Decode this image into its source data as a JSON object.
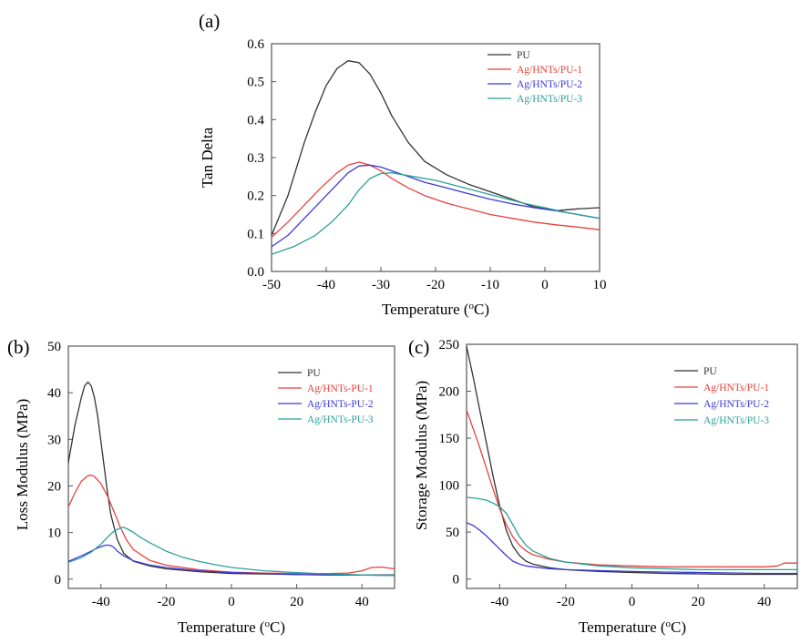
{
  "chart_data": [
    {
      "type": "line",
      "panel_label": "(a)",
      "xlabel": "Temperature (",
      "xlabel_unit": "C)",
      "xlabel_sup": "o",
      "ylabel": "Tan Delta",
      "xlim": [
        -50,
        10
      ],
      "ylim": [
        0,
        0.6
      ],
      "xticks": [
        "-50",
        "-40",
        "-30",
        "-20",
        "-10",
        "0",
        "10"
      ],
      "yticks": [
        "0.0",
        "0.1",
        "0.2",
        "0.3",
        "0.4",
        "0.5",
        "0.6"
      ],
      "legend_position": "top-right",
      "series": [
        {
          "name": "PU",
          "color": "#333333",
          "x": [
            -50,
            -47,
            -44,
            -42,
            -40,
            -38,
            -36,
            -34,
            -32,
            -30,
            -28,
            -25,
            -22,
            -18,
            -14,
            -10,
            -6,
            -2,
            2,
            6,
            10
          ],
          "y": [
            0.095,
            0.2,
            0.34,
            0.42,
            0.49,
            0.535,
            0.555,
            0.55,
            0.52,
            0.47,
            0.41,
            0.34,
            0.29,
            0.255,
            0.23,
            0.21,
            0.19,
            0.17,
            0.16,
            0.165,
            0.168
          ]
        },
        {
          "name": "Ag/HNTs/PU-1",
          "color": "#e8413c",
          "x": [
            -50,
            -47,
            -44,
            -41,
            -38,
            -36,
            -34,
            -32,
            -30,
            -28,
            -25,
            -22,
            -18,
            -14,
            -10,
            -6,
            -2,
            2,
            6,
            10
          ],
          "y": [
            0.09,
            0.13,
            0.175,
            0.22,
            0.26,
            0.28,
            0.288,
            0.28,
            0.265,
            0.245,
            0.22,
            0.2,
            0.18,
            0.165,
            0.15,
            0.14,
            0.13,
            0.123,
            0.117,
            0.11
          ]
        },
        {
          "name": "Ag/HNTs/PU-2",
          "color": "#3b3bd6",
          "x": [
            -50,
            -47,
            -44,
            -41,
            -38,
            -36,
            -34,
            -32,
            -30,
            -28,
            -25,
            -22,
            -18,
            -14,
            -10,
            -6,
            -2,
            2,
            6,
            10
          ],
          "y": [
            0.065,
            0.095,
            0.14,
            0.185,
            0.23,
            0.26,
            0.278,
            0.28,
            0.275,
            0.265,
            0.25,
            0.235,
            0.22,
            0.205,
            0.19,
            0.178,
            0.168,
            0.16,
            0.15,
            0.14
          ]
        },
        {
          "name": "Ag/HNTs/PU-3",
          "color": "#2aa198",
          "x": [
            -50,
            -46,
            -42,
            -39,
            -36,
            -34,
            -32,
            -30,
            -28,
            -26,
            -24,
            -20,
            -16,
            -12,
            -8,
            -4,
            0,
            4,
            8,
            10
          ],
          "y": [
            0.045,
            0.065,
            0.095,
            0.13,
            0.175,
            0.215,
            0.245,
            0.258,
            0.26,
            0.255,
            0.25,
            0.24,
            0.225,
            0.21,
            0.195,
            0.18,
            0.168,
            0.155,
            0.145,
            0.14
          ]
        }
      ]
    },
    {
      "type": "line",
      "panel_label": "(b)",
      "xlabel": "Temperature (",
      "xlabel_unit": "C)",
      "xlabel_sup": "o",
      "ylabel": "Loss Modulus (MPa)",
      "xlim": [
        -50,
        50
      ],
      "ylim": [
        -2,
        50
      ],
      "xticks": [
        "-40",
        "-20",
        "0",
        "20",
        "40"
      ],
      "yticks": [
        "0",
        "10",
        "20",
        "30",
        "40",
        "50"
      ],
      "legend_position": "top-right",
      "series": [
        {
          "name": "PU",
          "color": "#333333",
          "x": [
            -50,
            -48,
            -46,
            -45,
            -44,
            -43,
            -42,
            -41,
            -40,
            -39,
            -38,
            -37,
            -35,
            -33,
            -30,
            -25,
            -20,
            -10,
            0,
            10,
            20,
            30,
            40,
            50
          ],
          "y": [
            25,
            33,
            39,
            41.5,
            42.3,
            41.5,
            39,
            35,
            29.5,
            24,
            18.5,
            14,
            8.5,
            5.5,
            3.8,
            2.8,
            2.2,
            1.6,
            1.2,
            1.1,
            1.0,
            0.9,
            0.9,
            0.9
          ]
        },
        {
          "name": "Ag/HNTs-PU-1",
          "color": "#e8413c",
          "x": [
            -50,
            -48,
            -46,
            -44,
            -43,
            -42,
            -40,
            -38,
            -36,
            -34,
            -32,
            -30,
            -25,
            -20,
            -10,
            0,
            10,
            20,
            30,
            36,
            40,
            43,
            46,
            50
          ],
          "y": [
            15.5,
            18.5,
            21,
            22.2,
            22.3,
            22,
            20.5,
            17.8,
            14.5,
            11,
            8.2,
            6.3,
            4,
            3,
            2,
            1.5,
            1.3,
            1.2,
            1.2,
            1.3,
            1.8,
            2.5,
            2.6,
            2.2
          ]
        },
        {
          "name": "Ag/HNTs-PU-2",
          "color": "#3b3bd6",
          "x": [
            -50,
            -46,
            -43,
            -41,
            -39,
            -38,
            -37,
            -36,
            -35,
            -33,
            -30,
            -25,
            -20,
            -10,
            0,
            10,
            20,
            30,
            40,
            50
          ],
          "y": [
            3.8,
            5,
            6,
            6.7,
            7.2,
            7.3,
            7.2,
            6.8,
            6,
            5,
            3.9,
            3,
            2.5,
            1.8,
            1.4,
            1.2,
            1.0,
            0.9,
            0.85,
            0.8
          ]
        },
        {
          "name": "Ag/HNTs-PU-3",
          "color": "#2aa198",
          "x": [
            -50,
            -46,
            -43,
            -40,
            -38,
            -36,
            -34,
            -33,
            -32,
            -30,
            -28,
            -25,
            -20,
            -15,
            -10,
            -5,
            0,
            10,
            20,
            30,
            40,
            50
          ],
          "y": [
            3.6,
            4.6,
            5.8,
            7.5,
            9,
            10.3,
            11,
            11.1,
            10.8,
            10,
            9,
            7.8,
            6,
            4.7,
            3.8,
            3.1,
            2.5,
            1.8,
            1.4,
            1.1,
            0.9,
            0.8
          ]
        }
      ]
    },
    {
      "type": "line",
      "panel_label": "(c)",
      "xlabel": "Temperature (",
      "xlabel_unit": "C)",
      "xlabel_sup": "o",
      "ylabel": "Storage Modulus (MPa)",
      "xlim": [
        -50,
        50
      ],
      "ylim": [
        -10,
        250
      ],
      "xticks": [
        "-40",
        "-20",
        "0",
        "20",
        "40"
      ],
      "yticks": [
        "0",
        "50",
        "100",
        "150",
        "200",
        "250"
      ],
      "legend_position": "top-right",
      "series": [
        {
          "name": "PU",
          "color": "#333333",
          "x": [
            -50,
            -48,
            -46,
            -44,
            -42,
            -40,
            -38,
            -36,
            -34,
            -32,
            -30,
            -25,
            -20,
            -10,
            0,
            10,
            20,
            30,
            40,
            50
          ],
          "y": [
            248,
            215,
            180,
            145,
            110,
            78,
            52,
            35,
            25,
            19,
            16,
            12,
            10,
            8,
            7,
            6,
            5.5,
            5,
            5,
            5
          ]
        },
        {
          "name": "Ag/HNTs/PU-1",
          "color": "#e8413c",
          "x": [
            -50,
            -48,
            -46,
            -44,
            -42,
            -40,
            -38,
            -36,
            -34,
            -32,
            -30,
            -25,
            -20,
            -10,
            0,
            10,
            20,
            30,
            40,
            44,
            46,
            50
          ],
          "y": [
            180,
            160,
            140,
            118,
            96,
            75,
            58,
            45,
            36,
            30,
            26,
            21,
            18,
            15,
            14,
            13,
            13,
            13,
            13,
            14,
            17,
            17
          ]
        },
        {
          "name": "Ag/HNTs/PU-2",
          "color": "#3b3bd6",
          "x": [
            -50,
            -48,
            -46,
            -44,
            -42,
            -40,
            -38,
            -36,
            -34,
            -32,
            -30,
            -25,
            -20,
            -10,
            0,
            10,
            20,
            30,
            40,
            50
          ],
          "y": [
            60,
            57,
            52,
            46,
            39,
            32,
            25,
            19,
            16,
            14,
            13,
            11,
            10,
            9,
            8,
            7.5,
            7,
            6.5,
            6,
            6
          ]
        },
        {
          "name": "Ag/HNTs/PU-3",
          "color": "#2aa198",
          "x": [
            -50,
            -47,
            -44,
            -42,
            -40,
            -38,
            -36,
            -34,
            -32,
            -30,
            -25,
            -20,
            -15,
            -10,
            0,
            10,
            20,
            30,
            40,
            50
          ],
          "y": [
            87,
            86,
            84,
            81,
            77,
            70,
            58,
            45,
            36,
            30,
            22,
            18,
            16,
            14,
            12,
            11,
            10,
            10,
            10,
            10
          ]
        }
      ]
    }
  ]
}
